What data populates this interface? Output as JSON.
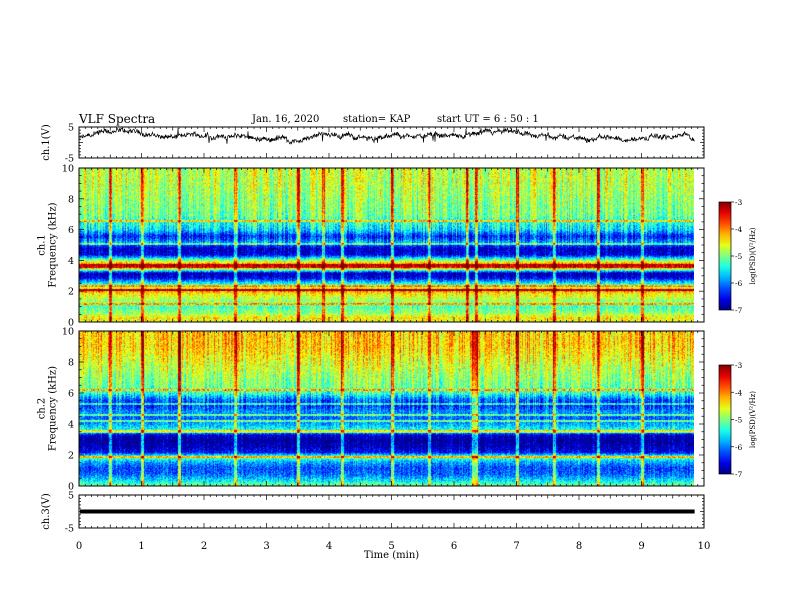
{
  "header": {
    "title": "VLF Spectra",
    "date": "Jan. 16, 2020",
    "station": "station= KAP",
    "start": "start  UT =  6 : 50 : 1"
  },
  "chart_data": [
    {
      "type": "line",
      "panel": "ch1-waveform",
      "ylabel": "ch.1(V)",
      "ylim": [
        -5,
        5
      ],
      "yticks": [
        5,
        -5
      ],
      "xlim": [
        0,
        10
      ],
      "x_end": 9.85,
      "baseline": 1.5,
      "noise_amplitude": 1.3
    },
    {
      "type": "heatmap",
      "panel": "ch1-spectrogram",
      "ylabel": "ch.1\nFrequency (kHz)",
      "ylim": [
        0,
        10
      ],
      "yticks": [
        0,
        2,
        4,
        6,
        8,
        10
      ],
      "xlim": [
        0,
        10
      ],
      "x_end": 9.85,
      "colorbar": {
        "label": "log(PSD)(V²/Hz)",
        "range": [
          -7,
          -3
        ],
        "ticks": [
          -3,
          -4,
          -5,
          -6,
          -7
        ]
      },
      "profile_kHz": [
        [
          0.0,
          -4.6
        ],
        [
          0.3,
          -4.4
        ],
        [
          0.6,
          -4.9
        ],
        [
          1.0,
          -5.2
        ],
        [
          1.5,
          -4.8
        ],
        [
          1.9,
          -4.4
        ],
        [
          2.1,
          -3.8
        ],
        [
          2.3,
          -4.8
        ],
        [
          2.6,
          -5.6
        ],
        [
          2.9,
          -6.6
        ],
        [
          3.2,
          -6.8
        ],
        [
          3.5,
          -4.4
        ],
        [
          3.8,
          -4.0
        ],
        [
          4.1,
          -5.2
        ],
        [
          4.4,
          -6.6
        ],
        [
          4.8,
          -6.7
        ],
        [
          5.2,
          -5.8
        ],
        [
          5.6,
          -6.4
        ],
        [
          6.0,
          -5.6
        ],
        [
          6.5,
          -5.3
        ],
        [
          7.0,
          -5.0
        ],
        [
          7.8,
          -4.9
        ],
        [
          8.5,
          -4.8
        ],
        [
          9.2,
          -4.7
        ],
        [
          10.0,
          -4.7
        ]
      ],
      "lines_kHz": [
        1.2,
        2.1,
        2.35,
        3.6,
        3.75,
        5.1,
        6.6
      ],
      "impulse_times_min": [
        0.5,
        1.0,
        1.6,
        2.5,
        3.5,
        3.9,
        4.2,
        5.0,
        5.6,
        6.2,
        6.35,
        7.0,
        7.6,
        8.3,
        9.0
      ]
    },
    {
      "type": "heatmap",
      "panel": "ch2-spectrogram",
      "ylabel": "ch.2\nFrequency (kHz)",
      "ylim": [
        0,
        10
      ],
      "yticks": [
        0,
        2,
        4,
        6,
        8,
        10
      ],
      "xlim": [
        0,
        10
      ],
      "x_end": 9.85,
      "colorbar": {
        "label": "log(PSD)(V²/Hz)",
        "range": [
          -7,
          -3
        ],
        "ticks": [
          -3,
          -4,
          -5,
          -6,
          -7
        ]
      },
      "profile_kHz": [
        [
          0.0,
          -4.9
        ],
        [
          0.4,
          -5.6
        ],
        [
          0.8,
          -6.1
        ],
        [
          1.2,
          -6.2
        ],
        [
          1.6,
          -5.8
        ],
        [
          1.9,
          -5.0
        ],
        [
          2.2,
          -6.5
        ],
        [
          2.6,
          -6.8
        ],
        [
          3.0,
          -6.9
        ],
        [
          3.3,
          -6.7
        ],
        [
          3.6,
          -5.3
        ],
        [
          4.0,
          -5.8
        ],
        [
          4.4,
          -6.1
        ],
        [
          4.8,
          -5.9
        ],
        [
          5.2,
          -6.3
        ],
        [
          5.6,
          -6.1
        ],
        [
          6.0,
          -5.3
        ],
        [
          6.5,
          -5.0
        ],
        [
          7.0,
          -4.9
        ],
        [
          8.0,
          -4.6
        ],
        [
          9.0,
          -4.3
        ],
        [
          10.0,
          -4.3
        ]
      ],
      "lines_kHz": [
        1.9,
        3.55,
        4.2,
        4.6,
        5.3,
        6.2
      ],
      "impulse_times_min": [
        0.5,
        1.0,
        1.6,
        2.5,
        3.5,
        4.2,
        5.0,
        5.6,
        6.3,
        6.35,
        7.0,
        7.6,
        8.3,
        9.0
      ]
    },
    {
      "type": "line",
      "panel": "ch3-waveform",
      "ylabel": "ch.3(V)",
      "ylim": [
        -5,
        5
      ],
      "yticks": [
        5,
        -5
      ],
      "xlim": [
        0,
        10
      ],
      "x_end": 9.85,
      "level": 0
    }
  ],
  "xaxis": {
    "label": "Time (min)",
    "ticks": [
      "0",
      "1",
      "2",
      "3",
      "4",
      "5",
      "6",
      "7",
      "8",
      "9",
      "10"
    ]
  }
}
